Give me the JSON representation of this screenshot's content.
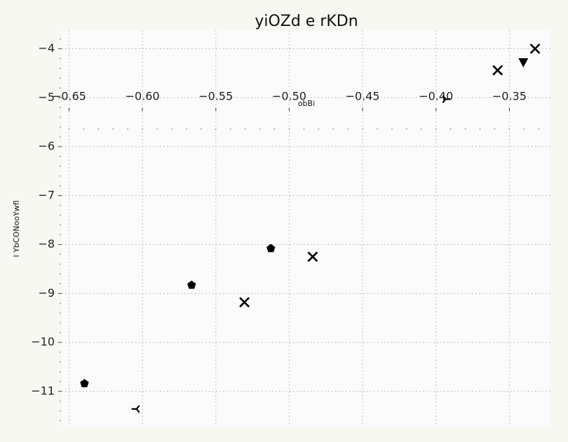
{
  "chart_data": {
    "type": "scatter",
    "title": "yiOZd e rKDn",
    "xlabel": "obBi",
    "ylabel": "l YbCONooYwfl",
    "xlim": [
      -0.655,
      -0.322
    ],
    "ylim": [
      -11.72,
      -3.62
    ],
    "xticks": [
      -0.65,
      -0.6,
      -0.55,
      -0.5,
      -0.45,
      -0.4,
      -0.35
    ],
    "xtick_labels": [
      "−0.65",
      "−0.60",
      "−0.55",
      "−0.50",
      "−0.45",
      "−0.40",
      "−0.35"
    ],
    "yticks": [
      -4,
      -5,
      -6,
      -7,
      -8,
      -9,
      -10,
      -11
    ],
    "ytick_labels": [
      "−4",
      "−5",
      "−6",
      "−7",
      "−8",
      "−9",
      "−10",
      "−11"
    ],
    "grid": true,
    "points": [
      {
        "x": -0.6395,
        "y": -10.84,
        "marker": "pentagon"
      },
      {
        "x": -0.5665,
        "y": -8.83,
        "marker": "pentagon"
      },
      {
        "x": -0.5125,
        "y": -8.08,
        "marker": "pentagon"
      },
      {
        "x": -0.6045,
        "y": -11.36,
        "marker": "tri-left"
      },
      {
        "x": -0.393,
        "y": -5.03,
        "marker": "tri-right"
      },
      {
        "x": -0.5305,
        "y": -9.18,
        "marker": "x"
      },
      {
        "x": -0.484,
        "y": -8.25,
        "marker": "x"
      },
      {
        "x": -0.358,
        "y": -4.44,
        "marker": "x"
      },
      {
        "x": -0.3325,
        "y": -4.0,
        "marker": "x"
      },
      {
        "x": -0.3405,
        "y": -4.28,
        "marker": "triangle-down"
      }
    ]
  }
}
